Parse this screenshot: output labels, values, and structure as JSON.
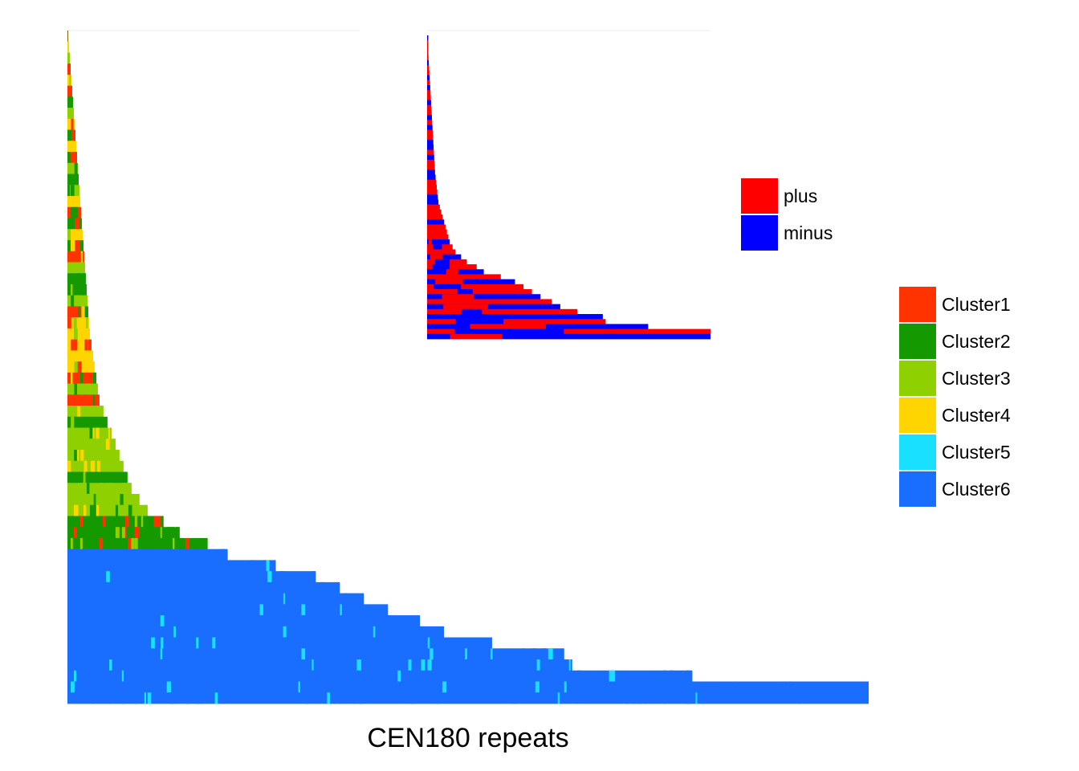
{
  "chart_data": [
    {
      "type": "heatmap",
      "description_level": "stacked CEN180 repeat arrays colored by cluster",
      "xlabel": "CEN180 repeats",
      "ylabel": "",
      "legend": {
        "placement": "right",
        "entries": [
          {
            "name": "Cluster1",
            "color": "#FF3300"
          },
          {
            "name": "Cluster2",
            "color": "#149A00"
          },
          {
            "name": "Cluster3",
            "color": "#8FD100"
          },
          {
            "name": "Cluster4",
            "color": "#FFD500"
          },
          {
            "name": "Cluster5",
            "color": "#19E0FF"
          },
          {
            "name": "Cluster6",
            "color": "#1A6EFF"
          }
        ]
      },
      "array_lengths": [
        1,
        2,
        3,
        4,
        5,
        6,
        7,
        8,
        9,
        10,
        11,
        12,
        13,
        14,
        15,
        16,
        17,
        18,
        19,
        20,
        21,
        22,
        23,
        24,
        25,
        26,
        27,
        28,
        30,
        32,
        34,
        36,
        38,
        40,
        45,
        50,
        55,
        60,
        65,
        70,
        75,
        80,
        90,
        100,
        120,
        140,
        175,
        200,
        260,
        310,
        340,
        370,
        400,
        440,
        470,
        530,
        620,
        630,
        780,
        1000,
        1000
      ],
      "dominant_cluster": [
        "Cluster1",
        "Cluster4",
        "Cluster3",
        "Cluster1",
        "Cluster4",
        "Cluster1",
        "Cluster2",
        "Cluster3",
        "Cluster4",
        "Cluster1",
        "Cluster4",
        "Cluster1",
        "Cluster3",
        "Cluster2",
        "Cluster3",
        "Cluster4",
        "Cluster1",
        "Cluster2",
        "Cluster4",
        "Cluster1",
        "Cluster1",
        "Cluster3",
        "Cluster2",
        "Cluster2",
        "Cluster3",
        "Cluster1",
        "Cluster4",
        "Cluster4",
        "Cluster4",
        "Cluster4",
        "Cluster4",
        "Cluster1",
        "Cluster3",
        "Cluster1",
        "Cluster3",
        "Cluster2",
        "Cluster3",
        "Cluster3",
        "Cluster3",
        "Cluster3",
        "Cluster2",
        "Cluster3",
        "Cluster3",
        "Cluster3",
        "Cluster2",
        "Cluster2",
        "Cluster2",
        "Cluster6",
        "Cluster6",
        "Cluster6",
        "Cluster6",
        "Cluster6",
        "Cluster6",
        "Cluster6",
        "Cluster6",
        "Cluster6",
        "Cluster6",
        "Cluster6",
        "Cluster6",
        "Cluster6",
        "Cluster6"
      ]
    },
    {
      "type": "heatmap",
      "description_level": "repeat strand orientation per array",
      "xlabel": "",
      "ylabel": "",
      "legend": {
        "placement": "right",
        "entries": [
          {
            "name": "plus",
            "color": "#FF0000"
          },
          {
            "name": "minus",
            "color": "#0000FF"
          }
        ]
      },
      "array_lengths": [
        1,
        2,
        3,
        4,
        5,
        6,
        7,
        8,
        9,
        10,
        11,
        12,
        13,
        14,
        15,
        16,
        17,
        18,
        19,
        20,
        21,
        22,
        23,
        24,
        25,
        26,
        27,
        28,
        30,
        32,
        34,
        36,
        38,
        40,
        45,
        50,
        55,
        60,
        65,
        70,
        75,
        80,
        90,
        100,
        120,
        140,
        175,
        200,
        260,
        310,
        340,
        370,
        400,
        440,
        470,
        530,
        620,
        630,
        780,
        1000,
        1000
      ],
      "strand": [
        "minus",
        "plus",
        "plus",
        "plus",
        "plus",
        "minus",
        "plus",
        "plus",
        "minus",
        "plus",
        "minus",
        "plus",
        "plus",
        "minus",
        "plus",
        "plus",
        "minus",
        "plus",
        "minus",
        "plus",
        "plus",
        "minus",
        "minus",
        "plus",
        "minus",
        "plus",
        "plus",
        "minus",
        "minus",
        "plus",
        "plus",
        "plus",
        "minus",
        "minus",
        "plus",
        "plus",
        "plus",
        "minus",
        "plus",
        "plus",
        "plus",
        "minus",
        "plus",
        "plus",
        "minus",
        "plus",
        "plus",
        "minus",
        "plus",
        "minus",
        "plus",
        "plus",
        "minus",
        "plus",
        "minus",
        "plus",
        "minus",
        "plus",
        "minus",
        "plus",
        "minus"
      ]
    }
  ]
}
